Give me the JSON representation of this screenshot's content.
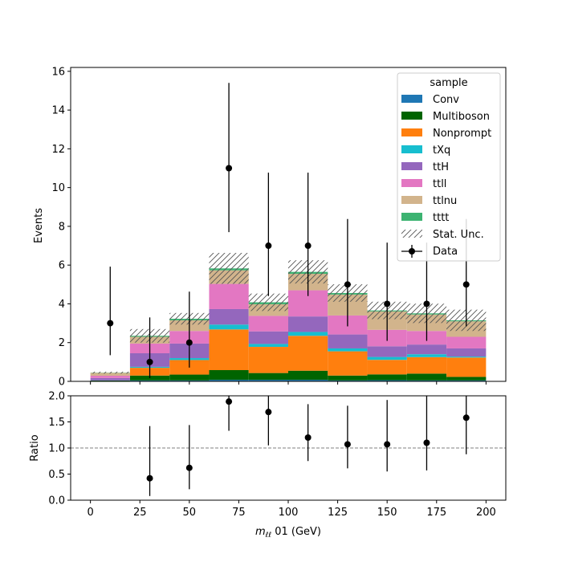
{
  "chart_data": {
    "type": "bar",
    "stacked": true,
    "bin_edges": [
      0,
      20,
      40,
      60,
      80,
      100,
      120,
      140,
      160,
      180,
      200
    ],
    "xlim": [
      -10,
      210
    ],
    "xlabel_prefix": "m",
    "xlabel_sub": "ℓℓ",
    "xlabel_suffix": " 01 (GeV)",
    "x_ticks": [
      0,
      25,
      50,
      75,
      100,
      125,
      150,
      175,
      200
    ],
    "main": {
      "ylabel": "Events",
      "ylim": [
        0,
        16.2
      ],
      "y_ticks": [
        0,
        2,
        4,
        6,
        8,
        10,
        12,
        14,
        16
      ]
    },
    "ratio": {
      "ylabel": "Ratio",
      "ylim": [
        0,
        2
      ],
      "y_ticks": [
        0.0,
        0.5,
        1.0,
        1.5,
        2.0
      ],
      "reference_line": 1.0,
      "values": [
        null,
        0.42,
        0.62,
        1.89,
        1.69,
        1.2,
        1.07,
        1.07,
        1.1,
        1.58
      ],
      "err_lo": [
        null,
        0.34,
        0.41,
        0.56,
        0.64,
        0.45,
        0.46,
        0.52,
        0.53,
        0.7
      ],
      "err_hi": [
        null,
        1.0,
        0.82,
        0.61,
        0.89,
        0.64,
        0.74,
        0.85,
        0.92,
        0.6
      ]
    },
    "legend": {
      "title": "sample",
      "placement": "top-right",
      "stat_label": "Stat. Unc.",
      "data_label": "Data"
    },
    "series": [
      {
        "name": "Conv",
        "color": "#1f77b4",
        "values": [
          0.02,
          0.05,
          0.05,
          0.08,
          0.08,
          0.08,
          0.05,
          0.06,
          0.05,
          0.05
        ]
      },
      {
        "name": "Multiboson",
        "color": "#006400",
        "values": [
          0.02,
          0.25,
          0.3,
          0.5,
          0.35,
          0.47,
          0.25,
          0.3,
          0.35,
          0.18
        ]
      },
      {
        "name": "Nonprompt",
        "color": "#ff7f0e",
        "values": [
          0.0,
          0.4,
          0.75,
          2.1,
          1.35,
          1.8,
          1.25,
          0.75,
          0.85,
          1.0
        ]
      },
      {
        "name": "tXq",
        "color": "#17becf",
        "values": [
          0.01,
          0.05,
          0.1,
          0.25,
          0.15,
          0.2,
          0.15,
          0.15,
          0.15,
          0.05
        ]
      },
      {
        "name": "ttH",
        "color": "#9467bd",
        "values": [
          0.12,
          0.7,
          0.75,
          0.8,
          0.65,
          0.8,
          0.72,
          0.55,
          0.5,
          0.42
        ]
      },
      {
        "name": "ttll",
        "color": "#e377c2",
        "values": [
          0.12,
          0.5,
          0.65,
          1.3,
          0.8,
          1.35,
          0.98,
          0.85,
          0.7,
          0.6
        ]
      },
      {
        "name": "ttlnu",
        "color": "#d2b48c",
        "values": [
          0.15,
          0.35,
          0.55,
          0.7,
          0.6,
          0.85,
          1.08,
          0.95,
          0.85,
          0.8
        ]
      },
      {
        "name": "tttt",
        "color": "#3cb371",
        "values": [
          0.01,
          0.05,
          0.08,
          0.1,
          0.1,
          0.1,
          0.08,
          0.05,
          0.06,
          0.05
        ]
      }
    ],
    "stat_unc": [
      0.05,
      0.35,
      0.3,
      0.8,
      0.45,
      0.6,
      0.45,
      0.45,
      0.5,
      0.55
    ],
    "data": {
      "x": [
        10,
        30,
        50,
        70,
        90,
        110,
        130,
        150,
        170,
        190
      ],
      "y": [
        3,
        1,
        2,
        11,
        7,
        7,
        5,
        4,
        4,
        5
      ],
      "err_lo": [
        1.65,
        0.83,
        1.29,
        3.3,
        2.6,
        2.6,
        2.16,
        1.91,
        1.91,
        2.16
      ],
      "err_hi": [
        2.92,
        2.3,
        2.63,
        4.4,
        3.77,
        3.77,
        3.38,
        3.16,
        3.16,
        3.38
      ]
    }
  }
}
